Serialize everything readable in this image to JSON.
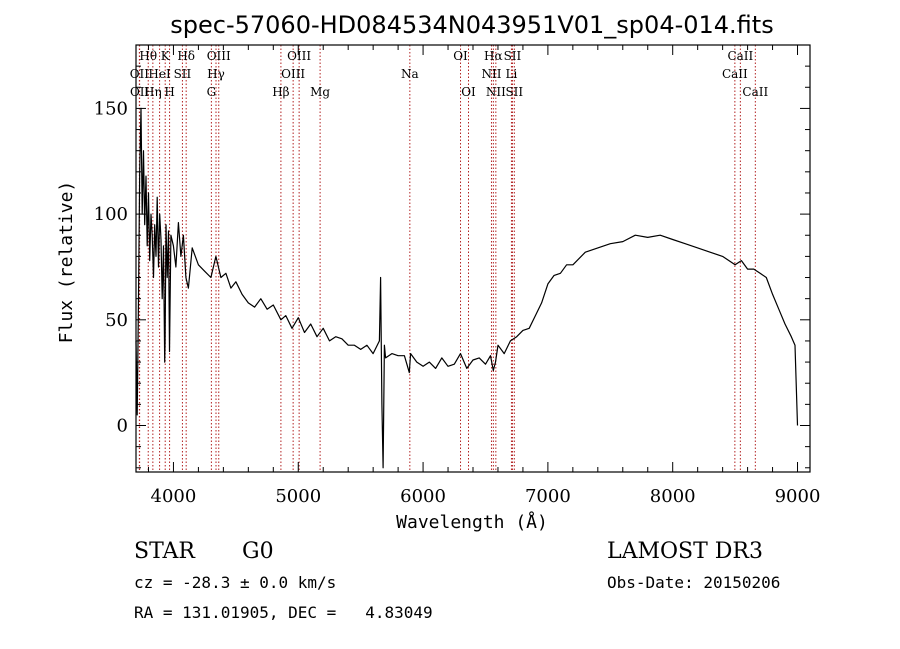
{
  "chart_data": {
    "type": "line",
    "title": "spec-57060-HD084534N043951V01_sp04-014.fits",
    "xlabel": "Wavelength (Å)",
    "ylabel": "Flux (relative)",
    "xlim": [
      3700,
      9100
    ],
    "ylim": [
      -22,
      180
    ],
    "x_ticks": [
      4000,
      5000,
      6000,
      7000,
      8000,
      9000
    ],
    "y_ticks": [
      0,
      50,
      100,
      150
    ],
    "series": [
      {
        "name": "flux",
        "x": [
          3700,
          3710,
          3720,
          3730,
          3740,
          3750,
          3760,
          3770,
          3780,
          3790,
          3800,
          3810,
          3820,
          3830,
          3840,
          3850,
          3860,
          3870,
          3880,
          3890,
          3900,
          3910,
          3920,
          3930,
          3933,
          3940,
          3950,
          3960,
          3968,
          3980,
          4000,
          4020,
          4040,
          4060,
          4080,
          4100,
          4120,
          4150,
          4200,
          4250,
          4300,
          4340,
          4380,
          4420,
          4460,
          4500,
          4550,
          4600,
          4650,
          4700,
          4750,
          4800,
          4861,
          4900,
          4950,
          5000,
          5050,
          5100,
          5150,
          5200,
          5250,
          5300,
          5350,
          5400,
          5450,
          5500,
          5550,
          5600,
          5650,
          5660,
          5670,
          5680,
          5690,
          5700,
          5750,
          5800,
          5850,
          5890,
          5900,
          5950,
          6000,
          6050,
          6100,
          6150,
          6200,
          6250,
          6300,
          6350,
          6400,
          6450,
          6500,
          6540,
          6563,
          6580,
          6600,
          6650,
          6700,
          6750,
          6800,
          6850,
          6900,
          6950,
          7000,
          7050,
          7100,
          7150,
          7200,
          7300,
          7400,
          7500,
          7600,
          7700,
          7800,
          7900,
          8000,
          8100,
          8200,
          8300,
          8400,
          8500,
          8550,
          8600,
          8650,
          8700,
          8750,
          8800,
          8850,
          8900,
          8950,
          8980,
          9000
        ],
        "values": [
          40,
          5,
          60,
          120,
          150,
          100,
          130,
          95,
          118,
          85,
          110,
          78,
          100,
          90,
          70,
          95,
          80,
          108,
          75,
          100,
          88,
          60,
          85,
          30,
          40,
          95,
          70,
          92,
          35,
          90,
          85,
          75,
          96,
          80,
          90,
          70,
          65,
          84,
          76,
          73,
          70,
          80,
          70,
          72,
          65,
          68,
          62,
          58,
          56,
          60,
          55,
          57,
          50,
          52,
          46,
          51,
          44,
          48,
          42,
          46,
          40,
          42,
          41,
          38,
          38,
          36,
          38,
          34,
          40,
          70,
          10,
          -20,
          38,
          32,
          34,
          33,
          33,
          25,
          34,
          30,
          28,
          30,
          27,
          32,
          28,
          29,
          34,
          27,
          31,
          32,
          29,
          33,
          26,
          30,
          38,
          34,
          40,
          42,
          45,
          46,
          52,
          58,
          67,
          71,
          72,
          76,
          76,
          82,
          84,
          86,
          87,
          90,
          89,
          90,
          88,
          86,
          84,
          82,
          80,
          76,
          78,
          74,
          74,
          72,
          70,
          62,
          55,
          48,
          42,
          38,
          0
        ]
      }
    ],
    "spectral_lines": [
      {
        "name": "OII",
        "wavelength": 3727,
        "row": 2
      },
      {
        "name": "OII",
        "wavelength": 3729,
        "row": 3
      },
      {
        "name": "Hθ",
        "wavelength": 3798,
        "row": 1
      },
      {
        "name": "Hη",
        "wavelength": 3835,
        "row": 3
      },
      {
        "name": "HeI",
        "wavelength": 3889,
        "row": 2
      },
      {
        "name": "K",
        "wavelength": 3934,
        "row": 1
      },
      {
        "name": "H",
        "wavelength": 3969,
        "row": 3
      },
      {
        "name": "SII",
        "wavelength": 4072,
        "row": 2
      },
      {
        "name": "Hδ",
        "wavelength": 4102,
        "row": 1
      },
      {
        "name": "G",
        "wavelength": 4304,
        "row": 3
      },
      {
        "name": "Hγ",
        "wavelength": 4341,
        "row": 2
      },
      {
        "name": "OIII",
        "wavelength": 4363,
        "row": 1
      },
      {
        "name": "Hβ",
        "wavelength": 4861,
        "row": 3
      },
      {
        "name": "OIII",
        "wavelength": 4959,
        "row": 2
      },
      {
        "name": "OIII",
        "wavelength": 5007,
        "row": 1
      },
      {
        "name": "Mg",
        "wavelength": 5175,
        "row": 3
      },
      {
        "name": "Na",
        "wavelength": 5894,
        "row": 2
      },
      {
        "name": "OI",
        "wavelength": 6300,
        "row": 1
      },
      {
        "name": "OI",
        "wavelength": 6364,
        "row": 3
      },
      {
        "name": "NII",
        "wavelength": 6548,
        "row": 2
      },
      {
        "name": "Hα",
        "wavelength": 6563,
        "row": 1
      },
      {
        "name": "NII",
        "wavelength": 6583,
        "row": 3
      },
      {
        "name": "Li",
        "wavelength": 6708,
        "row": 2
      },
      {
        "name": "SII",
        "wavelength": 6716,
        "row": 1
      },
      {
        "name": "SII",
        "wavelength": 6731,
        "row": 3
      },
      {
        "name": "CaII",
        "wavelength": 8498,
        "row": 2
      },
      {
        "name": "CaII",
        "wavelength": 8542,
        "row": 1
      },
      {
        "name": "CaII",
        "wavelength": 8662,
        "row": 3
      }
    ],
    "line_color": "#000000",
    "marker_color": "#b22222"
  },
  "info": {
    "class": "STAR",
    "subclass": "G0",
    "survey": "LAMOST DR3",
    "cz": "cz = -28.3 ± 0.0 km/s",
    "obs_date": "Obs-Date: 20150206",
    "coords": "RA = 131.01905, DEC =   4.83049"
  }
}
